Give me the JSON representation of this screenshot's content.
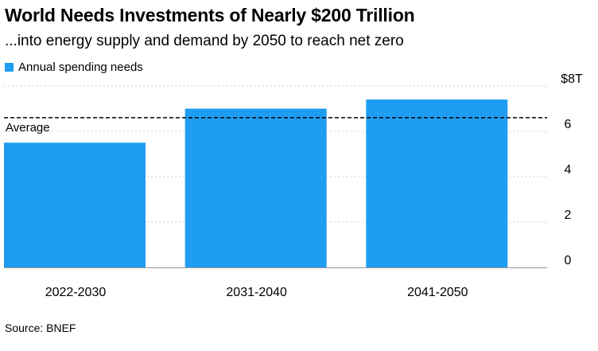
{
  "colors": {
    "bar": "#1e9df2",
    "grid": "#cccccc",
    "average_line": "#000000",
    "text": "#000000"
  },
  "chart_data": {
    "type": "bar",
    "title": "World Needs Investments of Nearly $200 Trillion",
    "subtitle": "...into energy supply and demand by 2050 to reach net zero",
    "legend": [
      "Annual spending needs"
    ],
    "categories": [
      "2022-2030",
      "2031-2040",
      "2041-2050"
    ],
    "series": [
      {
        "name": "Annual spending needs",
        "values": [
          5.5,
          7.0,
          7.4
        ]
      }
    ],
    "average": {
      "label": "Average",
      "value": 6.6
    },
    "y_axis": {
      "min": 0,
      "max": 8,
      "ticks": [
        0,
        2,
        4,
        6,
        8
      ],
      "tick_labels": [
        "0",
        "2",
        "4",
        "6",
        "$8T"
      ],
      "position": "right"
    },
    "xlabel": "",
    "ylabel": "",
    "grid": true,
    "source": "Source: BNEF"
  }
}
